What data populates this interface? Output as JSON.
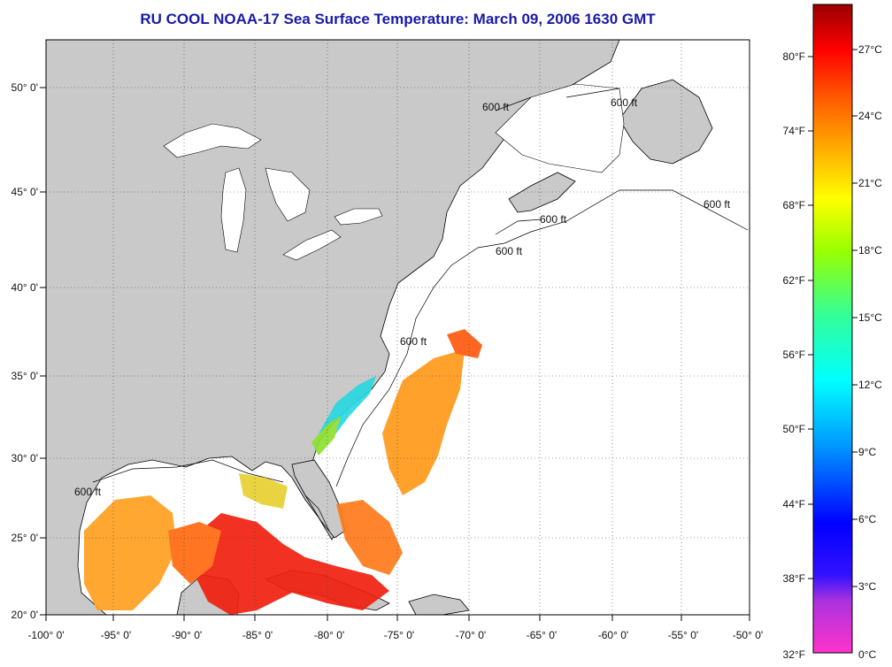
{
  "title": "RU COOL  NOAA-17  Sea Surface Temperature:  March 09, 2006 1630 GMT",
  "map": {
    "lon_labels": [
      "-100° 0'",
      "-95° 0'",
      "-90° 0'",
      "-85° 0'",
      "-80° 0'",
      "-75° 0'",
      "-70° 0'",
      "-65° 0'",
      "-60° 0'",
      "-55° 0'",
      "-50° 0'"
    ],
    "lat_labels": [
      "50° 0'",
      "45° 0'",
      "40° 0'",
      "35° 0'",
      "30° 0'",
      "25° 0'",
      "20° 0'"
    ],
    "isobath_label": "600 ft",
    "land_color": "#c9c9c9",
    "ocean_color": "#ffffff"
  },
  "colorbar": {
    "fahrenheit_labels": [
      "80°F",
      "74°F",
      "68°F",
      "62°F",
      "56°F",
      "50°F",
      "44°F",
      "38°F",
      "32°F"
    ],
    "celsius_labels": [
      "27°C",
      "24°C",
      "21°C",
      "18°C",
      "15°C",
      "12°C",
      "9°C",
      "6°C",
      "3°C",
      "0°C"
    ],
    "stops": [
      "#ff33cc",
      "#9933cc",
      "#0000ff",
      "#0099ff",
      "#00ffff",
      "#33ff99",
      "#99ff00",
      "#ffff00",
      "#ffaa00",
      "#ff5500",
      "#ff0000",
      "#990000"
    ]
  }
}
